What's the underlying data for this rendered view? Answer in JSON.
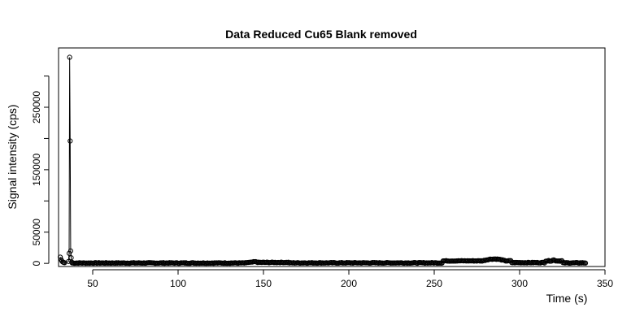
{
  "chart_data": {
    "type": "scatter",
    "title": "Data Reduced Cu65 Blank removed",
    "xlabel": "Time (s)",
    "ylabel": "Signal intensity (cps)",
    "xlim": [
      30,
      350
    ],
    "ylim": [
      -5000,
      345000
    ],
    "xticks": [
      50,
      100,
      150,
      200,
      250,
      300,
      350
    ],
    "xtick_labels": [
      "50",
      "100",
      "150",
      "200",
      "250",
      "300",
      "350"
    ],
    "yticks": [
      0,
      50000,
      100000,
      150000,
      200000,
      250000,
      300000
    ],
    "ytick_labels": [
      "0",
      "50000",
      "",
      "150000",
      "",
      "250000",
      ""
    ],
    "grid": false,
    "legend": "none",
    "series_style": "points connected by line, open circle markers",
    "spike": {
      "x": [
        35.8,
        36.2,
        36.5,
        36.8,
        37.1,
        37.4,
        37.7
      ],
      "y": [
        3000,
        16000,
        330000,
        196000,
        20000,
        9000,
        2000
      ]
    },
    "early_points": {
      "x": [
        31.0,
        31.5,
        32.0,
        32.5,
        33.0,
        33.5
      ],
      "y": [
        10000,
        6000,
        3500,
        2000,
        1500,
        1000
      ]
    },
    "baseline_segments": [
      {
        "x_start": 38,
        "x_end": 140,
        "y": 600
      },
      {
        "x_start": 140,
        "x_end": 165,
        "y": 1500
      },
      {
        "x_start": 165,
        "x_end": 255,
        "y": 800
      },
      {
        "x_start": 255,
        "x_end": 295,
        "y": 4000
      },
      {
        "x_start": 295,
        "x_end": 315,
        "y": 1200
      },
      {
        "x_start": 315,
        "x_end": 325,
        "y": 4000
      },
      {
        "x_start": 325,
        "x_end": 339,
        "y": 800
      }
    ],
    "bumps": [
      {
        "x_center": 285,
        "y_peak": 7000,
        "width": 20
      },
      {
        "x_center": 320,
        "y_peak": 5500,
        "width": 4
      },
      {
        "x_center": 145,
        "y_peak": 2500,
        "width": 6
      }
    ]
  }
}
